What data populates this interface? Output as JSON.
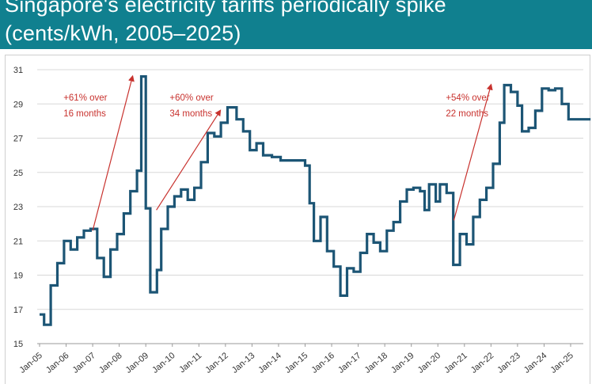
{
  "header": {
    "title_line1": "Singapore's electricity tariffs periodically spike",
    "title_line2": "(cents/kWh, 2005–2025)"
  },
  "colors": {
    "header_bg": "#10808f",
    "line": "#1c5575",
    "annotation": "#c8322e",
    "grid": "#d8d8d8"
  },
  "chart_data": {
    "type": "line",
    "title": "Singapore's electricity tariffs periodically spike",
    "ylabel": "cents/kWh",
    "xlabel": "",
    "ylim": [
      15,
      31
    ],
    "yticks": [
      15,
      17,
      19,
      21,
      23,
      25,
      27,
      29,
      31
    ],
    "xlim": [
      2005.0,
      2025.75
    ],
    "xticks": [
      {
        "x": 2005,
        "label": "Jan-05"
      },
      {
        "x": 2006,
        "label": "Jan-06"
      },
      {
        "x": 2007,
        "label": "Jan-07"
      },
      {
        "x": 2008,
        "label": "Jan-08"
      },
      {
        "x": 2009,
        "label": "Jan-09"
      },
      {
        "x": 2010,
        "label": "Jan-10"
      },
      {
        "x": 2011,
        "label": "Jan-11"
      },
      {
        "x": 2012,
        "label": "Jan-12"
      },
      {
        "x": 2013,
        "label": "Jan-13"
      },
      {
        "x": 2014,
        "label": "Jan-14"
      },
      {
        "x": 2015,
        "label": "Jan-15"
      },
      {
        "x": 2016,
        "label": "Jan-16"
      },
      {
        "x": 2017,
        "label": "Jan-17"
      },
      {
        "x": 2018,
        "label": "Jan-18"
      },
      {
        "x": 2019,
        "label": "Jan-19"
      },
      {
        "x": 2020,
        "label": "Jan-20"
      },
      {
        "x": 2021,
        "label": "Jan-21"
      },
      {
        "x": 2022,
        "label": "Jan-22"
      },
      {
        "x": 2023,
        "label": "Jan-23"
      },
      {
        "x": 2024,
        "label": "Jan-24"
      },
      {
        "x": 2025,
        "label": "Jan-25"
      }
    ],
    "series": [
      {
        "name": "Electricity tariff",
        "points": [
          [
            2005.0,
            16.7
          ],
          [
            2005.17,
            16.7
          ],
          [
            2005.17,
            16.1
          ],
          [
            2005.42,
            16.1
          ],
          [
            2005.42,
            18.4
          ],
          [
            2005.67,
            18.4
          ],
          [
            2005.67,
            19.7
          ],
          [
            2005.92,
            19.7
          ],
          [
            2005.92,
            21.0
          ],
          [
            2006.17,
            21.0
          ],
          [
            2006.17,
            20.5
          ],
          [
            2006.42,
            20.5
          ],
          [
            2006.42,
            21.2
          ],
          [
            2006.67,
            21.2
          ],
          [
            2006.67,
            21.6
          ],
          [
            2006.92,
            21.6
          ],
          [
            2006.92,
            21.7
          ],
          [
            2007.17,
            21.7
          ],
          [
            2007.17,
            20.0
          ],
          [
            2007.42,
            20.0
          ],
          [
            2007.42,
            18.9
          ],
          [
            2007.67,
            18.9
          ],
          [
            2007.67,
            20.5
          ],
          [
            2007.92,
            20.5
          ],
          [
            2007.92,
            21.4
          ],
          [
            2008.17,
            21.4
          ],
          [
            2008.17,
            22.6
          ],
          [
            2008.42,
            22.6
          ],
          [
            2008.42,
            23.9
          ],
          [
            2008.67,
            23.9
          ],
          [
            2008.67,
            25.1
          ],
          [
            2008.83,
            25.1
          ],
          [
            2008.83,
            30.6
          ],
          [
            2009.0,
            30.6
          ],
          [
            2009.0,
            22.9
          ],
          [
            2009.17,
            22.9
          ],
          [
            2009.17,
            18.0
          ],
          [
            2009.42,
            18.0
          ],
          [
            2009.42,
            19.3
          ],
          [
            2009.58,
            19.3
          ],
          [
            2009.58,
            21.7
          ],
          [
            2009.83,
            21.7
          ],
          [
            2009.83,
            23.0
          ],
          [
            2010.08,
            23.0
          ],
          [
            2010.08,
            23.6
          ],
          [
            2010.33,
            23.6
          ],
          [
            2010.33,
            24.0
          ],
          [
            2010.58,
            24.0
          ],
          [
            2010.58,
            23.4
          ],
          [
            2010.83,
            23.4
          ],
          [
            2010.83,
            24.1
          ],
          [
            2011.08,
            24.1
          ],
          [
            2011.08,
            25.6
          ],
          [
            2011.33,
            25.6
          ],
          [
            2011.33,
            27.3
          ],
          [
            2011.58,
            27.3
          ],
          [
            2011.58,
            27.1
          ],
          [
            2011.83,
            27.1
          ],
          [
            2011.83,
            27.9
          ],
          [
            2012.08,
            27.9
          ],
          [
            2012.08,
            28.8
          ],
          [
            2012.42,
            28.8
          ],
          [
            2012.42,
            28.1
          ],
          [
            2012.67,
            28.1
          ],
          [
            2012.67,
            27.4
          ],
          [
            2012.92,
            27.4
          ],
          [
            2012.92,
            26.3
          ],
          [
            2013.17,
            26.3
          ],
          [
            2013.17,
            26.7
          ],
          [
            2013.42,
            26.7
          ],
          [
            2013.42,
            26.0
          ],
          [
            2013.75,
            26.0
          ],
          [
            2013.75,
            25.9
          ],
          [
            2014.08,
            25.9
          ],
          [
            2014.08,
            25.7
          ],
          [
            2015.0,
            25.7
          ],
          [
            2015.0,
            25.4
          ],
          [
            2015.17,
            25.4
          ],
          [
            2015.17,
            23.2
          ],
          [
            2015.33,
            23.2
          ],
          [
            2015.33,
            21.0
          ],
          [
            2015.58,
            21.0
          ],
          [
            2015.58,
            22.4
          ],
          [
            2015.83,
            22.4
          ],
          [
            2015.83,
            20.4
          ],
          [
            2016.08,
            20.4
          ],
          [
            2016.08,
            19.5
          ],
          [
            2016.33,
            19.5
          ],
          [
            2016.33,
            17.8
          ],
          [
            2016.58,
            17.8
          ],
          [
            2016.58,
            19.4
          ],
          [
            2016.83,
            19.4
          ],
          [
            2016.83,
            19.2
          ],
          [
            2017.08,
            19.2
          ],
          [
            2017.08,
            20.3
          ],
          [
            2017.33,
            20.3
          ],
          [
            2017.33,
            21.4
          ],
          [
            2017.58,
            21.4
          ],
          [
            2017.58,
            20.9
          ],
          [
            2017.83,
            20.9
          ],
          [
            2017.83,
            20.4
          ],
          [
            2018.08,
            20.4
          ],
          [
            2018.08,
            21.6
          ],
          [
            2018.33,
            21.6
          ],
          [
            2018.33,
            22.1
          ],
          [
            2018.58,
            22.1
          ],
          [
            2018.58,
            23.3
          ],
          [
            2018.83,
            23.3
          ],
          [
            2018.83,
            24.0
          ],
          [
            2019.08,
            24.0
          ],
          [
            2019.08,
            24.1
          ],
          [
            2019.33,
            24.1
          ],
          [
            2019.33,
            23.9
          ],
          [
            2019.5,
            23.9
          ],
          [
            2019.5,
            22.8
          ],
          [
            2019.67,
            22.8
          ],
          [
            2019.67,
            24.3
          ],
          [
            2019.92,
            24.3
          ],
          [
            2019.92,
            23.3
          ],
          [
            2020.08,
            23.3
          ],
          [
            2020.08,
            24.3
          ],
          [
            2020.33,
            24.3
          ],
          [
            2020.33,
            23.8
          ],
          [
            2020.58,
            23.8
          ],
          [
            2020.58,
            19.6
          ],
          [
            2020.83,
            19.6
          ],
          [
            2020.83,
            21.4
          ],
          [
            2021.08,
            21.4
          ],
          [
            2021.08,
            20.8
          ],
          [
            2021.33,
            20.8
          ],
          [
            2021.33,
            22.4
          ],
          [
            2021.58,
            22.4
          ],
          [
            2021.58,
            23.4
          ],
          [
            2021.83,
            23.4
          ],
          [
            2021.83,
            24.1
          ],
          [
            2022.08,
            24.1
          ],
          [
            2022.08,
            25.5
          ],
          [
            2022.33,
            25.5
          ],
          [
            2022.33,
            27.9
          ],
          [
            2022.5,
            27.9
          ],
          [
            2022.5,
            30.1
          ],
          [
            2022.75,
            30.1
          ],
          [
            2022.75,
            29.7
          ],
          [
            2023.0,
            29.7
          ],
          [
            2023.0,
            28.9
          ],
          [
            2023.17,
            28.9
          ],
          [
            2023.17,
            27.4
          ],
          [
            2023.42,
            27.4
          ],
          [
            2023.42,
            27.6
          ],
          [
            2023.67,
            27.6
          ],
          [
            2023.67,
            28.6
          ],
          [
            2023.92,
            28.6
          ],
          [
            2023.92,
            29.9
          ],
          [
            2024.17,
            29.9
          ],
          [
            2024.17,
            29.8
          ],
          [
            2024.42,
            29.8
          ],
          [
            2024.42,
            29.9
          ],
          [
            2024.67,
            29.9
          ],
          [
            2024.67,
            29.0
          ],
          [
            2024.92,
            29.0
          ],
          [
            2024.92,
            28.1
          ],
          [
            2025.75,
            28.1
          ]
        ]
      }
    ],
    "annotations": [
      {
        "line1": "+61% over",
        "line2": "16 months",
        "x": 2005.9,
        "y": 29.2,
        "arrow_from": [
          2007.0,
          21.6
        ],
        "arrow_to": [
          2008.5,
          30.6
        ]
      },
      {
        "line1": "+60% over",
        "line2": "34 months",
        "x": 2009.9,
        "y": 29.2,
        "arrow_from": [
          2009.4,
          22.8
        ],
        "arrow_to": [
          2011.8,
          28.6
        ]
      },
      {
        "line1": "+54% over",
        "line2": "22 months",
        "x": 2020.3,
        "y": 29.2,
        "arrow_from": [
          2020.6,
          22.2
        ],
        "arrow_to": [
          2022.0,
          30.1
        ]
      }
    ]
  }
}
